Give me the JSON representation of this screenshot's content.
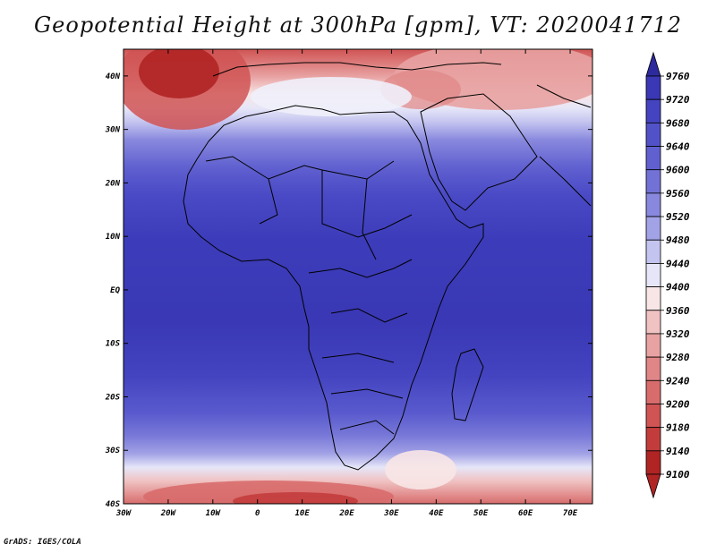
{
  "title": "Geopotential Height at 300hPa [gpm], VT: 2020041712",
  "footer": "GrADS: IGES/COLA",
  "map": {
    "lon_labels": [
      "30W",
      "20W",
      "10W",
      "0",
      "10E",
      "20E",
      "30E",
      "40E",
      "50E",
      "60E",
      "70E"
    ],
    "lat_labels": [
      "40N",
      "30N",
      "20N",
      "10N",
      "EQ",
      "10S",
      "20S",
      "30S",
      "40S"
    ],
    "lon_range": [
      -30,
      75
    ],
    "lat_range": [
      -40,
      45
    ]
  },
  "colorbar": {
    "levels": [
      "9760",
      "9720",
      "9680",
      "9640",
      "9600",
      "9560",
      "9520",
      "9480",
      "9440",
      "9400",
      "9360",
      "9320",
      "9280",
      "9240",
      "9200",
      "9180",
      "9140",
      "9100"
    ],
    "colors": [
      "#2d2a9e",
      "#3a38b4",
      "#4444c0",
      "#5252c8",
      "#6060d0",
      "#7272d6",
      "#8888de",
      "#a2a2e6",
      "#c4c4f0",
      "#e6e6f8",
      "#f8e6e6",
      "#f0c2c2",
      "#e8a2a2",
      "#e08686",
      "#d86c6c",
      "#d05454",
      "#c33c3c",
      "#b02424"
    ]
  }
}
